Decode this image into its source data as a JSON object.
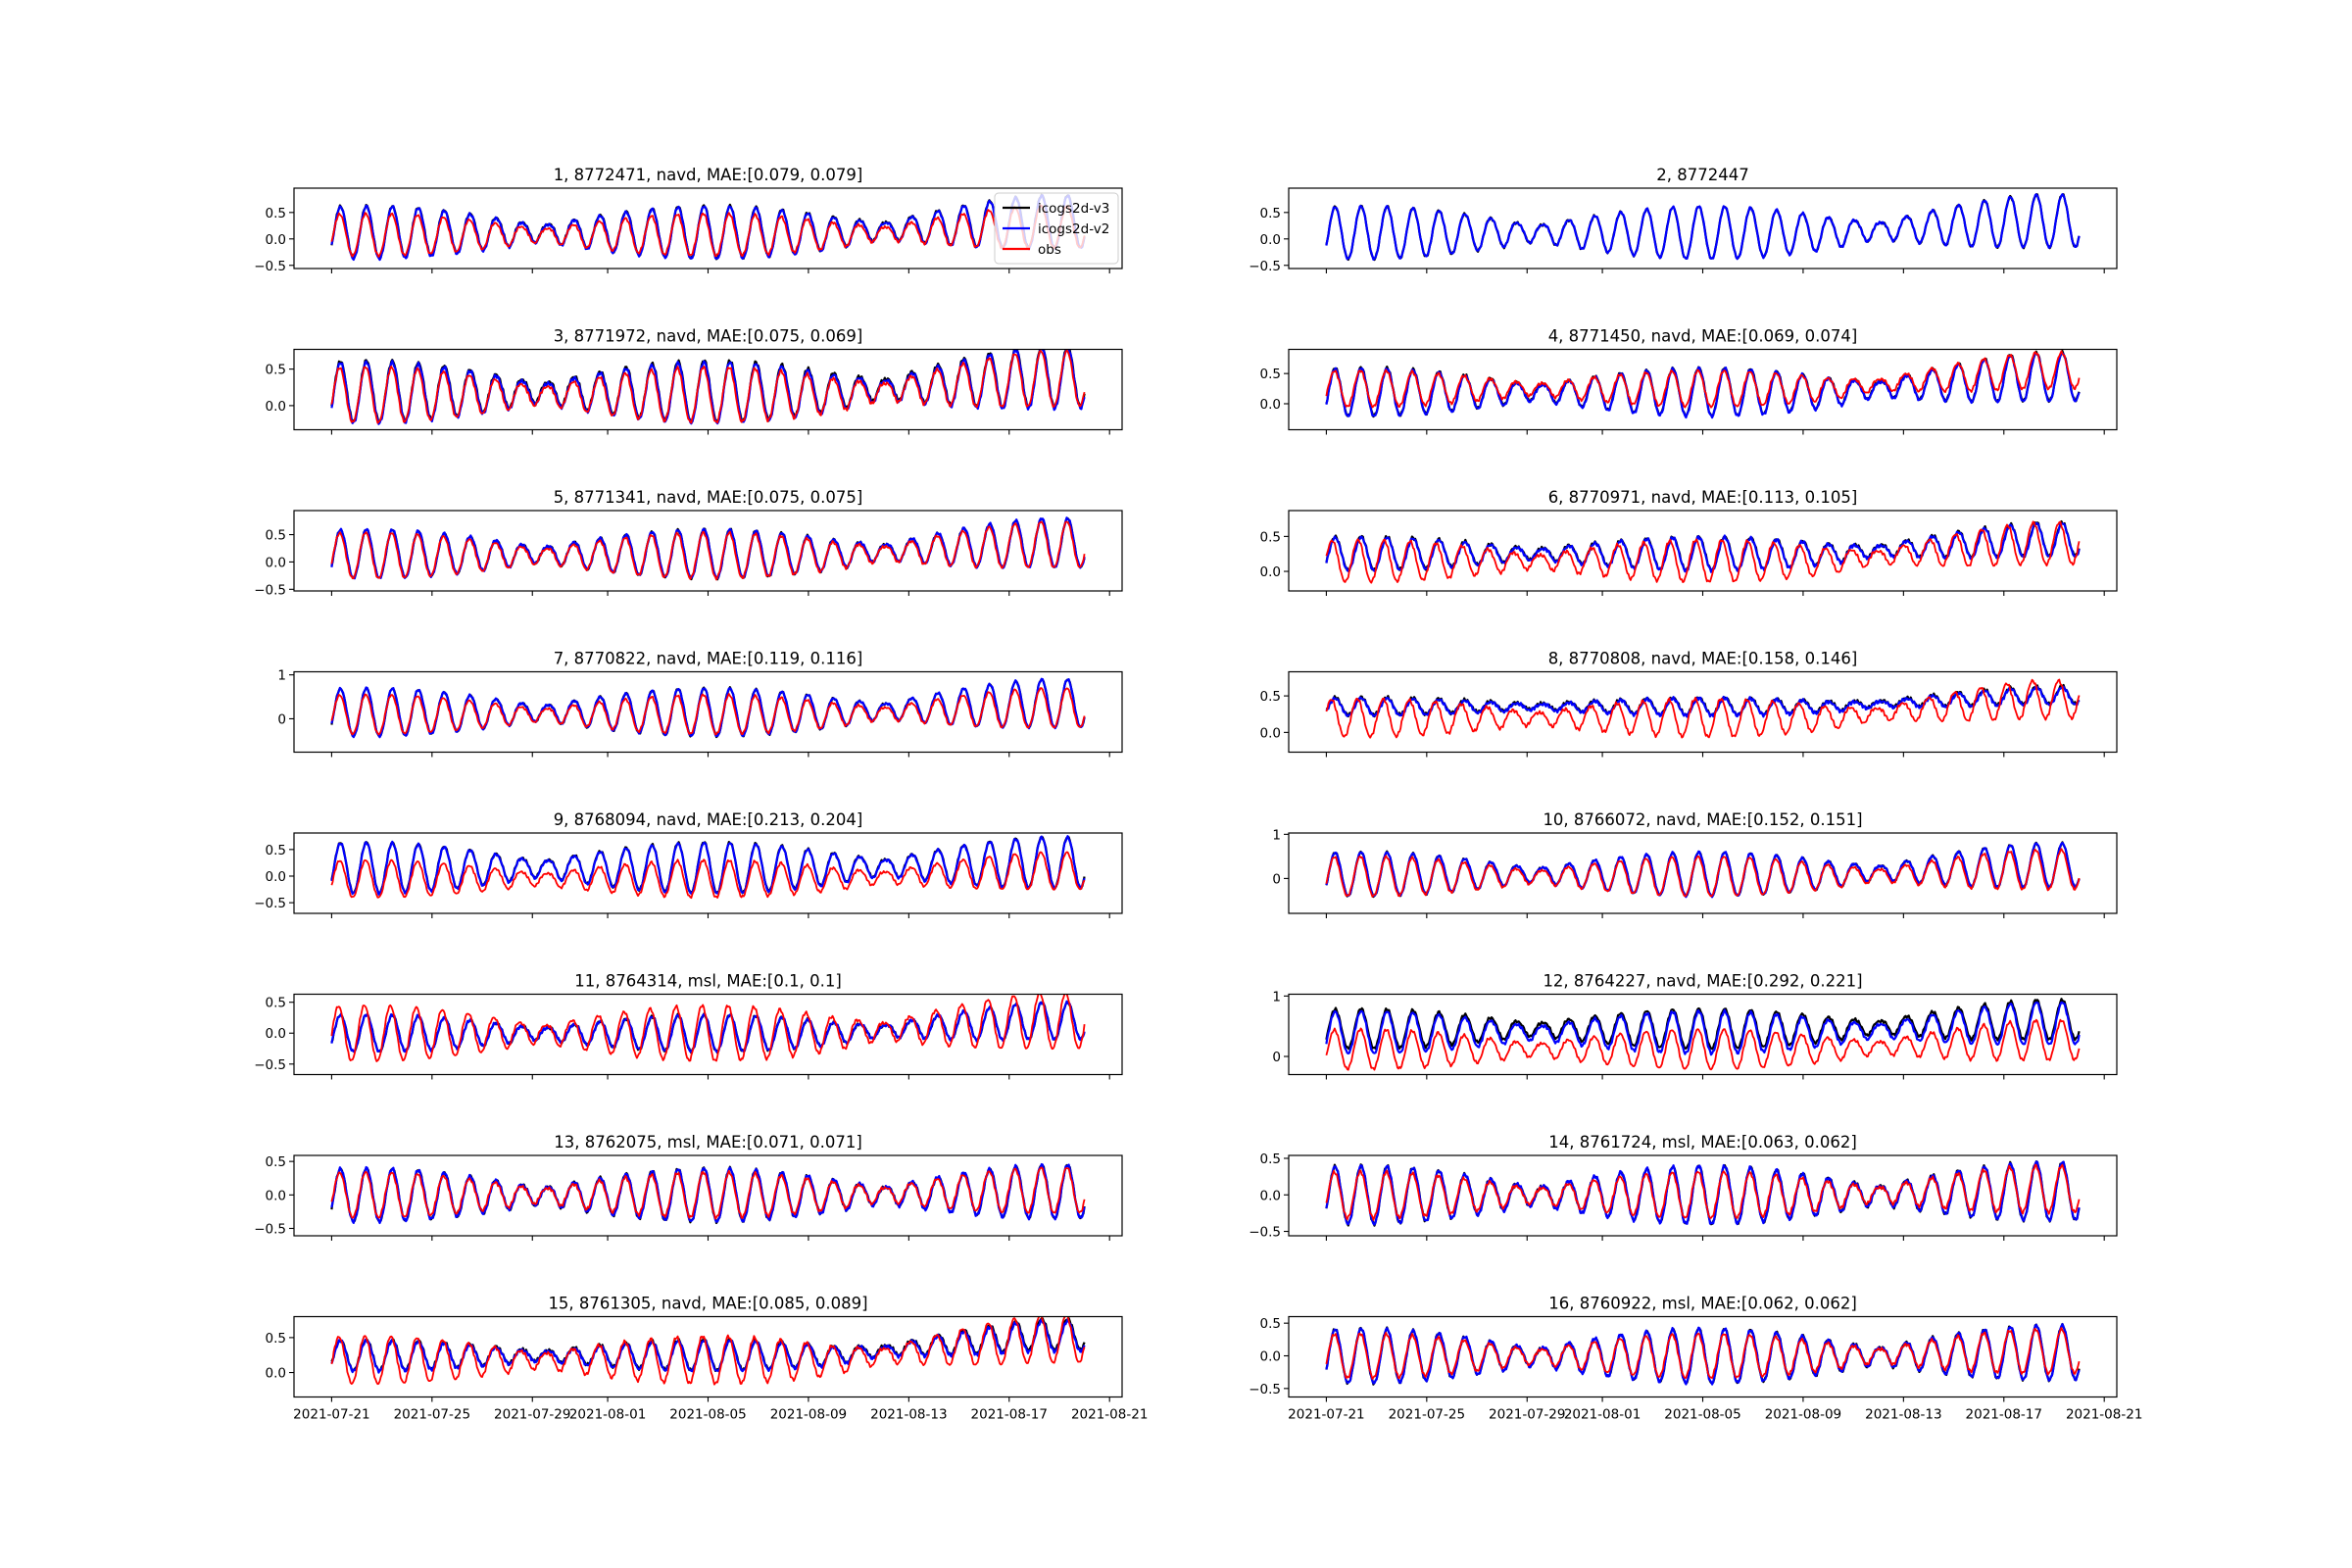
{
  "chart_data": {
    "type": "line",
    "layout": "8 rows x 2 columns of subplots, shared x axis",
    "x_axis": {
      "type": "date",
      "start_date": "2021-07-21",
      "data_range_days": [
        0,
        30
      ],
      "xlim_days": [
        -1.5,
        31.5
      ],
      "ticks": [
        {
          "day": 0,
          "label": "2021-07-21"
        },
        {
          "day": 4,
          "label": "2021-07-25"
        },
        {
          "day": 8,
          "label": "2021-07-29"
        },
        {
          "day": 11,
          "label": "2021-08-01"
        },
        {
          "day": 15,
          "label": "2021-08-05"
        },
        {
          "day": 19,
          "label": "2021-08-09"
        },
        {
          "day": 23,
          "label": "2021-08-13"
        },
        {
          "day": 27,
          "label": "2021-08-17"
        },
        {
          "day": 31,
          "label": "2021-08-21"
        }
      ]
    },
    "series_styles": [
      {
        "name": "icogs2d-v3",
        "color": "#000000"
      },
      {
        "name": "icogs2d-v2",
        "color": "#0000ff"
      },
      {
        "name": "obs",
        "color": "#ff0000"
      }
    ],
    "legend": {
      "panel": 1,
      "placement": "upper-right",
      "entries": [
        "icogs2d-v3",
        "icogs2d-v2",
        "obs"
      ]
    },
    "series_model_note": "water level series (m) approximated as mean + amplitude * spring-neap envelope * diurnal tide + trend",
    "panels": [
      {
        "title": "1, 8772471, navd, MAE:[0.079, 0.079]",
        "ylim": [
          -0.56,
          0.96
        ],
        "yticks": [
          {
            "v": -0.5,
            "label": "−0.5"
          },
          {
            "v": 0,
            "label": "0.0"
          },
          {
            "v": 0.5,
            "label": "0.5"
          }
        ],
        "series": [
          {
            "mean": 0.13,
            "amplitude": 0.5,
            "trend": 0.2,
            "lag": 0
          },
          {
            "mean": 0.12,
            "amplitude": 0.5,
            "trend": 0.2,
            "lag": 0
          },
          {
            "mean": 0.08,
            "amplitude": 0.4,
            "trend": 0.15,
            "lag": -0.03
          }
        ]
      },
      {
        "title": "2, 8772447",
        "ylim": [
          -0.56,
          0.96
        ],
        "yticks": [
          {
            "v": -0.5,
            "label": "−0.5"
          },
          {
            "v": 0,
            "label": "0.0"
          },
          {
            "v": 0.5,
            "label": "0.5"
          }
        ],
        "series": [
          {
            "mean": 0.12,
            "amplitude": 0.5,
            "trend": 0.22,
            "lag": 0
          },
          {
            "mean": 0.12,
            "amplitude": 0.5,
            "trend": 0.22,
            "lag": 0
          },
          null
        ]
      },
      {
        "title": "3, 8771972, navd, MAE:[0.075, 0.069]",
        "ylim": [
          -0.33,
          0.77
        ],
        "yticks": [
          {
            "v": 0,
            "label": "0.0"
          },
          {
            "v": 0.5,
            "label": "0.5"
          }
        ],
        "series": [
          {
            "mean": 0.2,
            "amplitude": 0.42,
            "trend": 0.2,
            "lag": 0
          },
          {
            "mean": 0.18,
            "amplitude": 0.42,
            "trend": 0.2,
            "lag": 0
          },
          {
            "mean": 0.15,
            "amplitude": 0.38,
            "trend": 0.22,
            "lag": -0.03
          }
        ]
      },
      {
        "title": "4, 8771450, navd, MAE:[0.069, 0.074]",
        "ylim": [
          -0.43,
          0.9
        ],
        "yticks": [
          {
            "v": 0,
            "label": "0.0"
          },
          {
            "v": 0.5,
            "label": "0.5"
          }
        ],
        "series": [
          {
            "mean": 0.2,
            "amplitude": 0.4,
            "trend": 0.25,
            "lag": 0
          },
          {
            "mean": 0.19,
            "amplitude": 0.4,
            "trend": 0.25,
            "lag": 0
          },
          {
            "mean": 0.25,
            "amplitude": 0.3,
            "trend": 0.3,
            "lag": -0.03
          }
        ]
      },
      {
        "title": "5, 8771341, navd, MAE:[0.075, 0.075]",
        "ylim": [
          -0.53,
          0.94
        ],
        "yticks": [
          {
            "v": -0.5,
            "label": "−0.5"
          },
          {
            "v": 0,
            "label": "0.0"
          },
          {
            "v": 0.5,
            "label": "0.5"
          }
        ],
        "series": [
          {
            "mean": 0.15,
            "amplitude": 0.45,
            "trend": 0.2,
            "lag": 0
          },
          {
            "mean": 0.15,
            "amplitude": 0.45,
            "trend": 0.2,
            "lag": 0
          },
          {
            "mean": 0.12,
            "amplitude": 0.42,
            "trend": 0.2,
            "lag": -0.03
          }
        ]
      },
      {
        "title": "6, 8770971, navd, MAE:[0.113, 0.105]",
        "ylim": [
          -0.28,
          0.87
        ],
        "yticks": [
          {
            "v": 0,
            "label": "0.0"
          },
          {
            "v": 0.5,
            "label": "0.5"
          }
        ],
        "series": [
          {
            "mean": 0.26,
            "amplitude": 0.24,
            "trend": 0.2,
            "lag": 0
          },
          {
            "mean": 0.25,
            "amplitude": 0.24,
            "trend": 0.2,
            "lag": 0
          },
          {
            "mean": 0.15,
            "amplitude": 0.3,
            "trend": 0.25,
            "lag": -0.12
          }
        ]
      },
      {
        "title": "7, 8770822, navd, MAE:[0.119, 0.116]",
        "ylim": [
          -0.76,
          1.07
        ],
        "yticks": [
          {
            "v": 0,
            "label": "0"
          },
          {
            "v": 1,
            "label": "1"
          }
        ],
        "series": [
          {
            "mean": 0.15,
            "amplitude": 0.55,
            "trend": 0.2,
            "lag": 0
          },
          {
            "mean": 0.15,
            "amplitude": 0.55,
            "trend": 0.2,
            "lag": 0
          },
          {
            "mean": 0.1,
            "amplitude": 0.45,
            "trend": 0.15,
            "lag": -0.03
          }
        ]
      },
      {
        "title": "8, 8770808, navd, MAE:[0.158, 0.146]",
        "ylim": [
          -0.27,
          0.83
        ],
        "yticks": [
          {
            "v": 0,
            "label": "0.0"
          },
          {
            "v": 0.5,
            "label": "0.5"
          }
        ],
        "series": [
          {
            "mean": 0.36,
            "amplitude": 0.12,
            "trend": 0.15,
            "lag": 0
          },
          {
            "mean": 0.35,
            "amplitude": 0.12,
            "trend": 0.15,
            "lag": 0
          },
          {
            "mean": 0.2,
            "amplitude": 0.26,
            "trend": 0.25,
            "lag": -0.15
          }
        ]
      },
      {
        "title": "9, 8768094, navd, MAE:[0.213, 0.204]",
        "ylim": [
          -0.7,
          0.81
        ],
        "yticks": [
          {
            "v": -0.5,
            "label": "−0.5"
          },
          {
            "v": 0,
            "label": "0.0"
          },
          {
            "v": 0.5,
            "label": "0.5"
          }
        ],
        "series": [
          {
            "mean": 0.16,
            "amplitude": 0.48,
            "trend": 0.1,
            "lag": 0
          },
          {
            "mean": 0.15,
            "amplitude": 0.48,
            "trend": 0.1,
            "lag": 0
          },
          {
            "mean": -0.05,
            "amplitude": 0.35,
            "trend": 0.15,
            "lag": -0.03
          }
        ]
      },
      {
        "title": "10, 8766072, navd, MAE:[0.152, 0.151]",
        "ylim": [
          -0.79,
          1.03
        ],
        "yticks": [
          {
            "v": 0,
            "label": "0"
          },
          {
            "v": 1,
            "label": "1"
          }
        ],
        "series": [
          {
            "mean": 0.1,
            "amplitude": 0.5,
            "trend": 0.2,
            "lag": 0
          },
          {
            "mean": 0.1,
            "amplitude": 0.5,
            "trend": 0.2,
            "lag": 0
          },
          {
            "mean": 0.05,
            "amplitude": 0.45,
            "trend": 0.15,
            "lag": -0.03
          }
        ]
      },
      {
        "title": "11, 8764314, msl, MAE:[0.1, 0.1]",
        "ylim": [
          -0.67,
          0.63
        ],
        "yticks": [
          {
            "v": -0.5,
            "label": "−0.5"
          },
          {
            "v": 0,
            "label": "0.0"
          },
          {
            "v": 0.5,
            "label": "0.5"
          }
        ],
        "series": [
          {
            "mean": 0.0,
            "amplitude": 0.3,
            "trend": 0.2,
            "lag": 0
          },
          {
            "mean": 0.0,
            "amplitude": 0.3,
            "trend": 0.2,
            "lag": 0
          },
          {
            "mean": 0.0,
            "amplitude": 0.45,
            "trend": 0.2,
            "lag": -0.08
          }
        ]
      },
      {
        "title": "12, 8764227, navd, MAE:[0.292, 0.221]",
        "ylim": [
          -0.3,
          1.03
        ],
        "yticks": [
          {
            "v": 0,
            "label": "0"
          },
          {
            "v": 1,
            "label": "1"
          }
        ],
        "series": [
          {
            "mean": 0.46,
            "amplitude": 0.33,
            "trend": 0.15,
            "lag": 0
          },
          {
            "mean": 0.4,
            "amplitude": 0.35,
            "trend": 0.15,
            "lag": 0
          },
          {
            "mean": 0.12,
            "amplitude": 0.33,
            "trend": 0.15,
            "lag": -0.03
          }
        ]
      },
      {
        "title": "13, 8762075, msl, MAE:[0.071, 0.071]",
        "ylim": [
          -0.61,
          0.59
        ],
        "yticks": [
          {
            "v": -0.5,
            "label": "−0.5"
          },
          {
            "v": 0,
            "label": "0.0"
          },
          {
            "v": 0.5,
            "label": "0.5"
          }
        ],
        "series": [
          {
            "mean": 0.0,
            "amplitude": 0.4,
            "trend": 0.05,
            "lag": 0
          },
          {
            "mean": 0.0,
            "amplitude": 0.4,
            "trend": 0.05,
            "lag": 0
          },
          {
            "mean": 0.0,
            "amplitude": 0.34,
            "trend": 0.07,
            "lag": -0.03
          }
        ]
      },
      {
        "title": "14, 8761724, msl, MAE:[0.063, 0.062]",
        "ylim": [
          -0.56,
          0.54
        ],
        "yticks": [
          {
            "v": -0.5,
            "label": "−0.5"
          },
          {
            "v": 0,
            "label": "0.0"
          },
          {
            "v": 0.5,
            "label": "0.5"
          }
        ],
        "series": [
          {
            "mean": 0.0,
            "amplitude": 0.4,
            "trend": 0.05,
            "lag": 0
          },
          {
            "mean": 0.0,
            "amplitude": 0.4,
            "trend": 0.05,
            "lag": 0
          },
          {
            "mean": 0.0,
            "amplitude": 0.32,
            "trend": 0.08,
            "lag": -0.03
          }
        ]
      },
      {
        "title": "15, 8761305, navd, MAE:[0.085, 0.089]",
        "ylim": [
          -0.35,
          0.8
        ],
        "yticks": [
          {
            "v": 0,
            "label": "0.0"
          },
          {
            "v": 0.5,
            "label": "0.5"
          }
        ],
        "series": [
          {
            "mean": 0.25,
            "amplitude": 0.22,
            "trend": 0.3,
            "lag": 0
          },
          {
            "mean": 0.24,
            "amplitude": 0.22,
            "trend": 0.28,
            "lag": 0
          },
          {
            "mean": 0.18,
            "amplitude": 0.34,
            "trend": 0.3,
            "lag": -0.06
          }
        ]
      },
      {
        "title": "16, 8760922, msl, MAE:[0.062, 0.062]",
        "ylim": [
          -0.63,
          0.6
        ],
        "yticks": [
          {
            "v": -0.5,
            "label": "−0.5"
          },
          {
            "v": 0,
            "label": "0.0"
          },
          {
            "v": 0.5,
            "label": "0.5"
          }
        ],
        "series": [
          {
            "mean": 0.0,
            "amplitude": 0.42,
            "trend": 0.05,
            "lag": 0
          },
          {
            "mean": 0.0,
            "amplitude": 0.42,
            "trend": 0.05,
            "lag": 0
          },
          {
            "mean": 0.0,
            "amplitude": 0.34,
            "trend": 0.07,
            "lag": -0.03
          }
        ]
      }
    ]
  }
}
